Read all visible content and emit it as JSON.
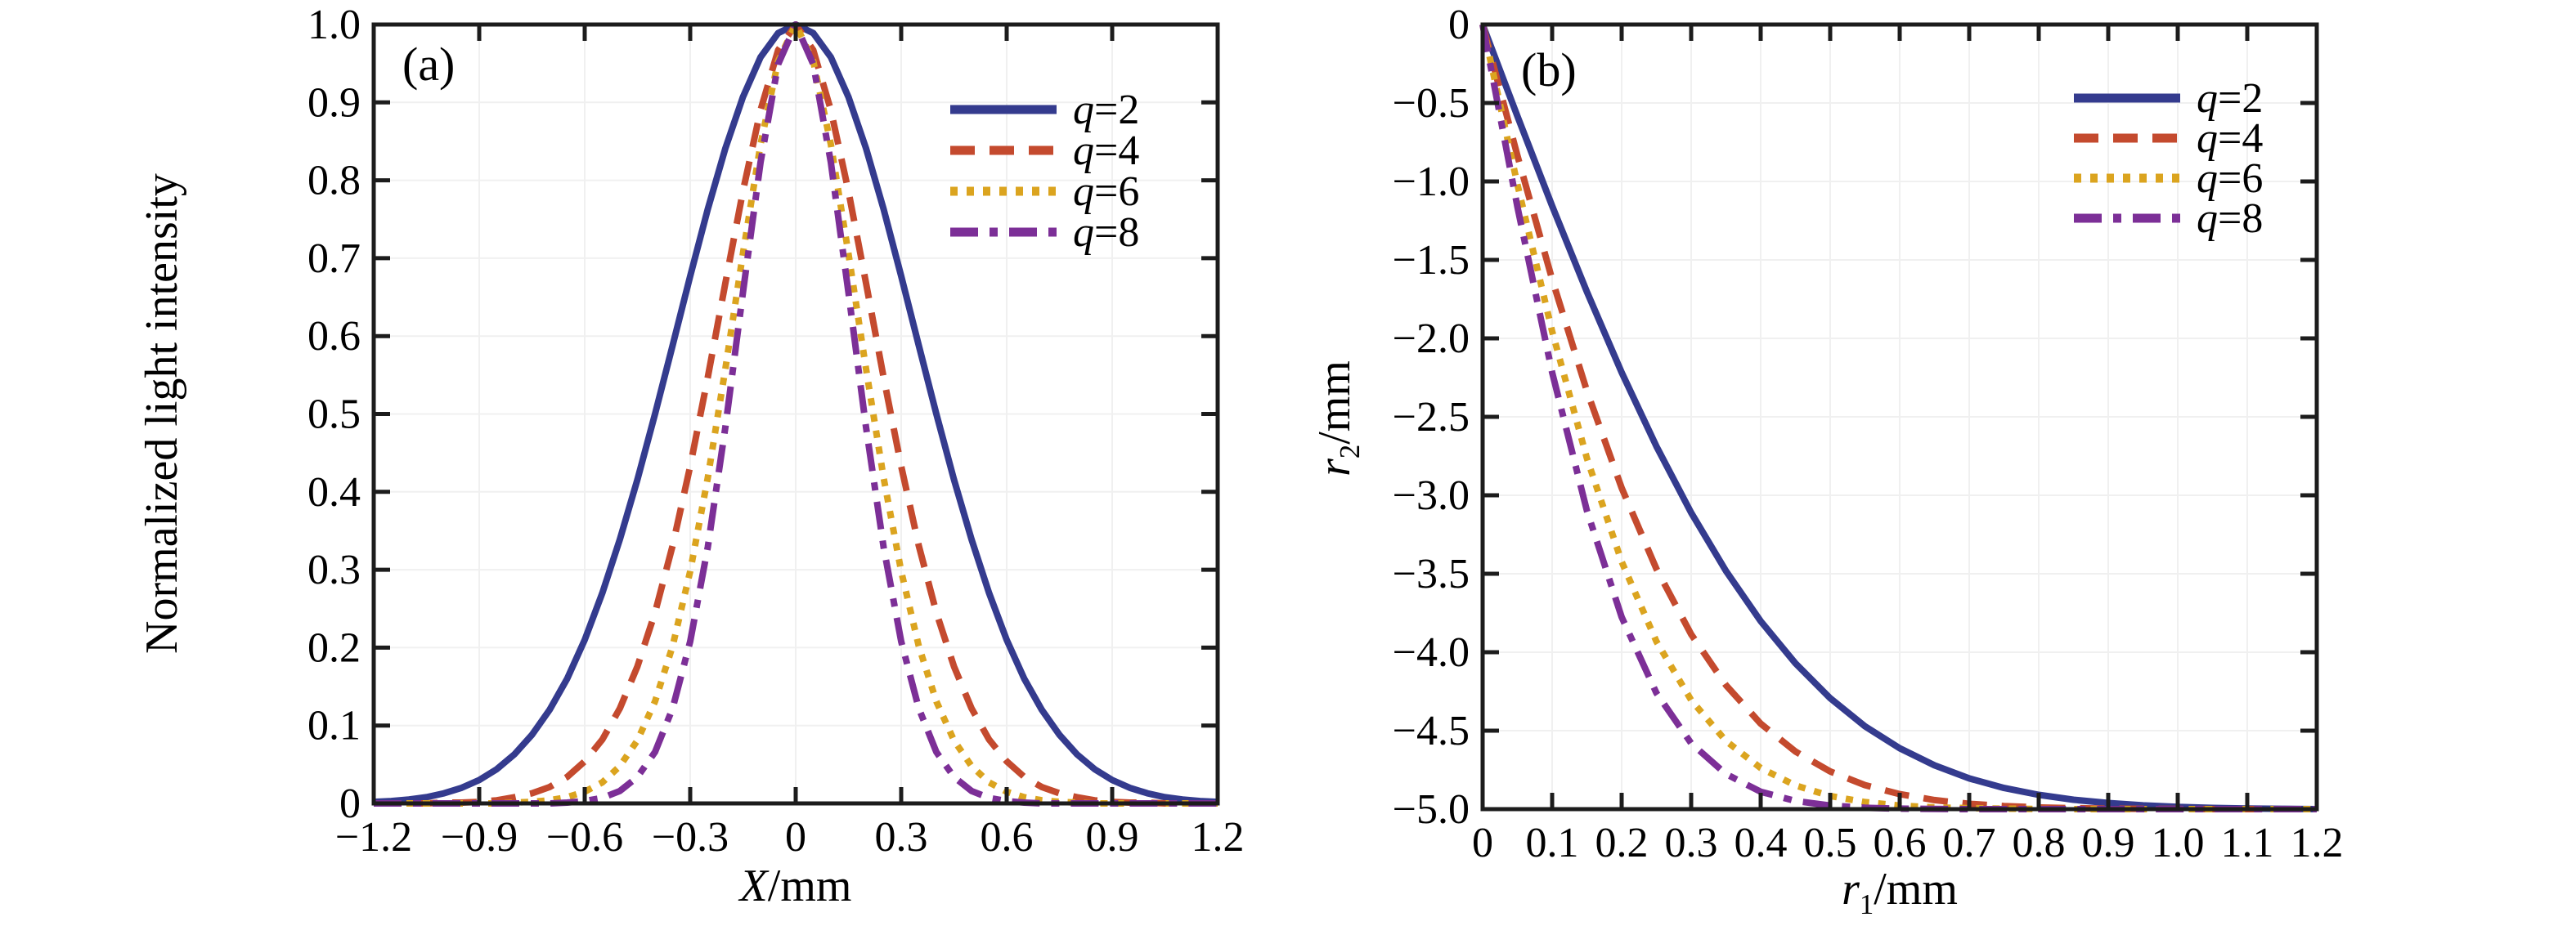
{
  "figure": {
    "background": "#ffffff",
    "spine_color": "#1c1c1c",
    "grid_color": "#f0f0f0"
  },
  "palette": {
    "q2": "#343b8e",
    "q4": "#c44a2e",
    "q6": "#dba41f",
    "q8": "#7c2f97"
  },
  "chart_data": [
    {
      "id": "a",
      "type": "line",
      "panel_label": "(a)",
      "title": "",
      "xlabel": {
        "italic": "X",
        "sub": "",
        "rest": "/mm"
      },
      "ylabel_text": "Normalized light intensity",
      "xlim": [
        -1.2,
        1.2
      ],
      "ylim": [
        0,
        1.0
      ],
      "grid": true,
      "legend_position": "upper-right-inside",
      "x_tick_values": [
        -1.2,
        -0.9,
        -0.6,
        -0.3,
        0,
        0.3,
        0.6,
        0.9,
        1.2
      ],
      "x_tick_labels": [
        "−1.2",
        "−0.9",
        "−0.6",
        "−0.3",
        "0",
        "0.3",
        "0.6",
        "0.9",
        "1.2"
      ],
      "y_tick_values": [
        1.0,
        0.9,
        0.8,
        0.7,
        0.6,
        0.5,
        0.4,
        0.3,
        0.2,
        0.1,
        0
      ],
      "y_tick_labels": [
        "1.0",
        "0.9",
        "0.8",
        "0.7",
        "0.6",
        "0.5",
        "0.4",
        "0.3",
        "0.2",
        "0.1",
        "0"
      ],
      "x": [
        -1.2,
        -1.15,
        -1.1,
        -1.05,
        -1.0,
        -0.95,
        -0.9,
        -0.85,
        -0.8,
        -0.75,
        -0.7,
        -0.65,
        -0.6,
        -0.55,
        -0.5,
        -0.45,
        -0.4,
        -0.35,
        -0.3,
        -0.25,
        -0.2,
        -0.15,
        -0.1,
        -0.05,
        0,
        0.05,
        0.1,
        0.15,
        0.2,
        0.25,
        0.3,
        0.35,
        0.4,
        0.45,
        0.5,
        0.55,
        0.6,
        0.65,
        0.7,
        0.75,
        0.8,
        0.85,
        0.9,
        0.95,
        1.0,
        1.05,
        1.1,
        1.15,
        1.2
      ],
      "series": [
        {
          "label": "q=2",
          "color": "#343b8e",
          "dash": "solid",
          "y": [
            0.002,
            0.003,
            0.005,
            0.008,
            0.013,
            0.02,
            0.03,
            0.044,
            0.063,
            0.088,
            0.12,
            0.16,
            0.21,
            0.27,
            0.339,
            0.416,
            0.5,
            0.588,
            0.677,
            0.763,
            0.841,
            0.907,
            0.958,
            0.989,
            1.0,
            0.989,
            0.958,
            0.907,
            0.841,
            0.763,
            0.677,
            0.588,
            0.5,
            0.416,
            0.339,
            0.27,
            0.21,
            0.16,
            0.12,
            0.088,
            0.063,
            0.044,
            0.03,
            0.02,
            0.013,
            0.008,
            0.005,
            0.003,
            0.002
          ]
        },
        {
          "label": "q=4",
          "color": "#c44a2e",
          "dash": "dashed",
          "y": [
            0,
            0,
            0,
            0,
            0.001,
            0.001,
            0.002,
            0.004,
            0.008,
            0.013,
            0.021,
            0.034,
            0.054,
            0.082,
            0.122,
            0.176,
            0.245,
            0.331,
            0.433,
            0.547,
            0.668,
            0.786,
            0.89,
            0.967,
            1.0,
            0.967,
            0.89,
            0.786,
            0.668,
            0.547,
            0.433,
            0.331,
            0.245,
            0.176,
            0.122,
            0.082,
            0.054,
            0.034,
            0.021,
            0.013,
            0.008,
            0.004,
            0.002,
            0.001,
            0.001,
            0,
            0,
            0,
            0
          ]
        },
        {
          "label": "q=6",
          "color": "#dba41f",
          "dash": "dotted",
          "y": [
            0,
            0,
            0,
            0,
            0,
            0,
            0,
            0,
            0.001,
            0.002,
            0.004,
            0.008,
            0.015,
            0.027,
            0.048,
            0.081,
            0.131,
            0.202,
            0.298,
            0.418,
            0.558,
            0.706,
            0.846,
            0.953,
            1.0,
            0.953,
            0.846,
            0.706,
            0.558,
            0.418,
            0.298,
            0.202,
            0.131,
            0.081,
            0.048,
            0.027,
            0.015,
            0.008,
            0.004,
            0.002,
            0.001,
            0,
            0,
            0,
            0,
            0,
            0,
            0,
            0
          ]
        },
        {
          "label": "q=8",
          "color": "#7c2f97",
          "dash": "dashdot",
          "y": [
            0,
            0,
            0,
            0,
            0,
            0,
            0,
            0,
            0,
            0,
            0,
            0.001,
            0.003,
            0.007,
            0.016,
            0.034,
            0.066,
            0.122,
            0.208,
            0.329,
            0.483,
            0.656,
            0.823,
            0.949,
            1.0,
            0.949,
            0.823,
            0.656,
            0.483,
            0.329,
            0.208,
            0.122,
            0.066,
            0.034,
            0.016,
            0.007,
            0.003,
            0.001,
            0,
            0,
            0,
            0,
            0,
            0,
            0,
            0,
            0,
            0,
            0
          ]
        }
      ]
    },
    {
      "id": "b",
      "type": "line",
      "panel_label": "(b)",
      "title": "",
      "xlabel": {
        "italic": "r",
        "sub": "1",
        "rest": "/mm"
      },
      "ylabel": {
        "italic": "r",
        "sub": "2",
        "rest": "/mm"
      },
      "xlim": [
        0,
        1.2
      ],
      "ylim": [
        -5.0,
        0
      ],
      "grid": true,
      "legend_position": "upper-right-inside",
      "x_tick_values": [
        0,
        0.1,
        0.2,
        0.3,
        0.4,
        0.5,
        0.6,
        0.7,
        0.8,
        0.9,
        1.0,
        1.1,
        1.2
      ],
      "x_tick_labels": [
        "0",
        "0.1",
        "0.2",
        "0.3",
        "0.4",
        "0.5",
        "0.6",
        "0.7",
        "0.8",
        "0.9",
        "1.0",
        "1.1",
        "1.2"
      ],
      "y_tick_values": [
        0,
        -0.5,
        -1.0,
        -1.5,
        -2.0,
        -2.5,
        -3.0,
        -3.5,
        -4.0,
        -4.5,
        -5.0
      ],
      "y_tick_labels": [
        "0",
        "−0.5",
        "−1.0",
        "−1.5",
        "−2.0",
        "−2.5",
        "−3.0",
        "−3.5",
        "−4.0",
        "−4.5",
        "−5.0"
      ],
      "x": [
        0,
        0.05,
        0.1,
        0.15,
        0.2,
        0.25,
        0.3,
        0.35,
        0.4,
        0.45,
        0.5,
        0.55,
        0.6,
        0.65,
        0.7,
        0.75,
        0.8,
        0.85,
        0.9,
        0.95,
        1.0,
        1.05,
        1.1,
        1.15,
        1.2
      ],
      "series": [
        {
          "label": "q=2",
          "color": "#343b8e",
          "dash": "solid",
          "y": [
            0,
            -0.584,
            -1.156,
            -1.703,
            -2.217,
            -2.688,
            -3.111,
            -3.482,
            -3.802,
            -4.071,
            -4.293,
            -4.472,
            -4.612,
            -4.721,
            -4.804,
            -4.865,
            -4.909,
            -4.94,
            -4.961,
            -4.976,
            -4.986,
            -4.992,
            -4.996,
            -4.998,
            -5.0
          ]
        },
        {
          "label": "q=4",
          "color": "#c44a2e",
          "dash": "dashed",
          "y": [
            0,
            -0.835,
            -1.624,
            -2.335,
            -2.953,
            -3.469,
            -3.886,
            -4.21,
            -4.455,
            -4.633,
            -4.76,
            -4.847,
            -4.904,
            -4.942,
            -4.966,
            -4.98,
            -4.989,
            -4.994,
            -4.997,
            -4.998,
            -4.999,
            -5.0,
            -5.0,
            -5.0,
            -5.0
          ]
        },
        {
          "label": "q=6",
          "color": "#dba41f",
          "dash": "dotted",
          "y": [
            0,
            -1.018,
            -1.955,
            -2.764,
            -3.423,
            -3.931,
            -4.305,
            -4.565,
            -4.738,
            -4.849,
            -4.916,
            -4.955,
            -4.977,
            -4.989,
            -4.994,
            -4.997,
            -4.999,
            -5.0,
            -5.0,
            -5.0,
            -5.0,
            -5.0,
            -5.0,
            -5.0,
            -5.0
          ]
        },
        {
          "label": "q=8",
          "color": "#7c2f97",
          "dash": "dashdot",
          "y": [
            0,
            -1.161,
            -2.217,
            -3.098,
            -3.776,
            -4.26,
            -4.58,
            -4.776,
            -4.889,
            -4.948,
            -4.977,
            -4.991,
            -4.997,
            -4.999,
            -5.0,
            -5.0,
            -5.0,
            -5.0,
            -5.0,
            -5.0,
            -5.0,
            -5.0,
            -5.0,
            -5.0,
            -5.0
          ]
        }
      ]
    }
  ]
}
